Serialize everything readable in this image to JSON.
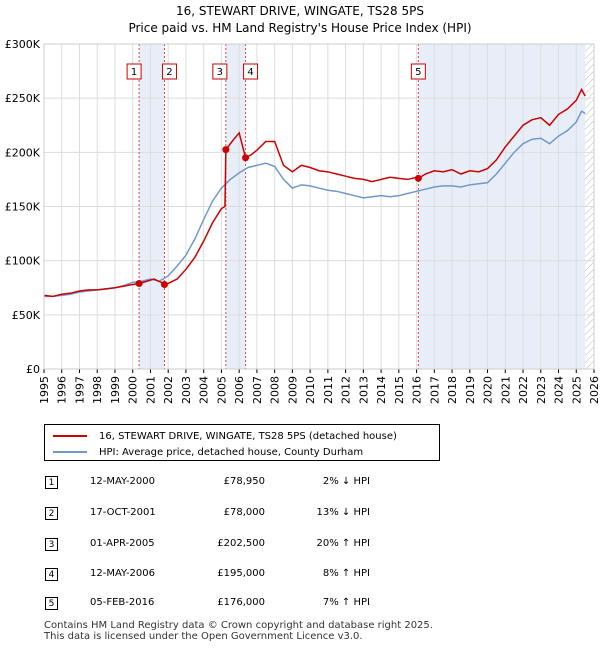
{
  "title_line1": "16, STEWART DRIVE, WINGATE, TS28 5PS",
  "title_line2": "Price paid vs. HM Land Registry's House Price Index (HPI)",
  "chart_data": {
    "type": "line",
    "xlim": [
      1995,
      2026
    ],
    "ylim": [
      0,
      300000
    ],
    "y_ticks": [
      0,
      50000,
      100000,
      150000,
      200000,
      250000,
      300000
    ],
    "y_tick_labels": [
      "£0",
      "£50K",
      "£100K",
      "£150K",
      "£200K",
      "£250K",
      "£300K"
    ],
    "x_ticks": [
      1995,
      1996,
      1997,
      1998,
      1999,
      2000,
      2001,
      2002,
      2003,
      2004,
      2005,
      2006,
      2007,
      2008,
      2009,
      2010,
      2011,
      2012,
      2013,
      2014,
      2015,
      2016,
      2017,
      2018,
      2019,
      2020,
      2021,
      2022,
      2023,
      2024,
      2025,
      2026
    ],
    "x_tick_labels": [
      "1995",
      "1996",
      "1997",
      "1998",
      "1999",
      "2000",
      "2001",
      "2002",
      "2003",
      "2004",
      "2005",
      "2006",
      "2007",
      "2008",
      "2009",
      "2010",
      "2011",
      "2012",
      "2013",
      "2014",
      "2015",
      "2016",
      "2017",
      "2018",
      "2019",
      "2020",
      "2021",
      "2022",
      "2023",
      "2024",
      "2025",
      "2026"
    ],
    "shaded_regions": [
      [
        2000.36,
        2001.79
      ],
      [
        2005.25,
        2006.36
      ],
      [
        2016.1,
        2025.5
      ]
    ],
    "hatched_region": [
      2025.5,
      2026
    ],
    "series": [
      {
        "name": "16, STEWART DRIVE, WINGATE, TS28 5PS (detached house)",
        "color": "#cc0000",
        "x": [
          1995,
          1995.5,
          1996,
          1996.5,
          1997,
          1997.5,
          1998,
          1998.5,
          1999,
          1999.5,
          2000,
          2000.36,
          2000.8,
          2001.2,
          2001.6,
          2001.79,
          2002,
          2002.5,
          2003,
          2003.5,
          2004,
          2004.5,
          2005,
          2005.2,
          2005.25,
          2005.6,
          2006,
          2006.36,
          2006.7,
          2007,
          2007.5,
          2008,
          2008.5,
          2009,
          2009.5,
          2010,
          2010.5,
          2011,
          2011.5,
          2012,
          2012.5,
          2013,
          2013.5,
          2014,
          2014.5,
          2015,
          2015.5,
          2016,
          2016.1,
          2016.5,
          2017,
          2017.5,
          2018,
          2018.5,
          2019,
          2019.5,
          2020,
          2020.5,
          2021,
          2021.5,
          2022,
          2022.5,
          2023,
          2023.5,
          2024,
          2024.5,
          2025,
          2025.3,
          2025.5
        ],
        "values": [
          68000,
          67000,
          69000,
          70000,
          72000,
          73000,
          73000,
          74000,
          75000,
          76500,
          78000,
          78950,
          81000,
          83000,
          80000,
          78000,
          79000,
          83000,
          92000,
          103000,
          118000,
          135000,
          148000,
          150000,
          202500,
          210000,
          218000,
          195000,
          198000,
          202000,
          210000,
          210000,
          188000,
          182000,
          188000,
          186000,
          183000,
          182000,
          180000,
          178000,
          176000,
          175000,
          173000,
          175000,
          177000,
          176000,
          175000,
          177000,
          176000,
          180000,
          183000,
          182000,
          184000,
          180000,
          183000,
          182000,
          185000,
          193000,
          205000,
          215000,
          225000,
          230000,
          232000,
          225000,
          235000,
          240000,
          248000,
          258000,
          252000
        ]
      },
      {
        "name": "HPI: Average price, detached house, County Durham",
        "color": "#6f98cc",
        "x": [
          1995,
          1995.5,
          1996,
          1996.5,
          1997,
          1997.5,
          1998,
          1998.5,
          1999,
          1999.5,
          2000,
          2000.5,
          2001,
          2001.5,
          2002,
          2002.5,
          2003,
          2003.5,
          2004,
          2004.5,
          2005,
          2005.5,
          2006,
          2006.5,
          2007,
          2007.5,
          2008,
          2008.5,
          2009,
          2009.5,
          2010,
          2010.5,
          2011,
          2011.5,
          2012,
          2012.5,
          2013,
          2013.5,
          2014,
          2014.5,
          2015,
          2015.5,
          2016,
          2016.5,
          2017,
          2017.5,
          2018,
          2018.5,
          2019,
          2019.5,
          2020,
          2020.5,
          2021,
          2021.5,
          2022,
          2022.5,
          2023,
          2023.5,
          2024,
          2024.5,
          2025,
          2025.3,
          2025.5
        ],
        "values": [
          67000,
          67000,
          68000,
          69000,
          71000,
          72000,
          73000,
          74000,
          75000,
          77000,
          80000,
          81000,
          83000,
          81000,
          86000,
          95000,
          105000,
          120000,
          138000,
          155000,
          167000,
          175000,
          181000,
          186000,
          188000,
          190000,
          187000,
          175000,
          167000,
          170000,
          169000,
          167000,
          165000,
          164000,
          162000,
          160000,
          158000,
          159000,
          160000,
          159000,
          160000,
          162000,
          164000,
          166000,
          168000,
          169000,
          169000,
          168000,
          170000,
          171000,
          172000,
          180000,
          190000,
          200000,
          208000,
          212000,
          213000,
          208000,
          215000,
          220000,
          228000,
          238000,
          236000
        ]
      }
    ],
    "markers": [
      {
        "label": "1",
        "x": 2000.36,
        "y": 78950
      },
      {
        "label": "2",
        "x": 2001.79,
        "y": 78000
      },
      {
        "label": "3",
        "x": 2005.25,
        "y": 202500
      },
      {
        "label": "4",
        "x": 2006.36,
        "y": 195000
      },
      {
        "label": "5",
        "x": 2016.1,
        "y": 176000
      }
    ]
  },
  "legend": {
    "red_label": "16, STEWART DRIVE, WINGATE, TS28 5PS (detached house)",
    "blue_label": "HPI: Average price, detached house, County Durham"
  },
  "transactions": [
    {
      "num": "1",
      "date": "12-MAY-2000",
      "price": "£78,950",
      "hpi": "2% ↓ HPI"
    },
    {
      "num": "2",
      "date": "17-OCT-2001",
      "price": "£78,000",
      "hpi": "13% ↓ HPI"
    },
    {
      "num": "3",
      "date": "01-APR-2005",
      "price": "£202,500",
      "hpi": "20% ↑ HPI"
    },
    {
      "num": "4",
      "date": "12-MAY-2006",
      "price": "£195,000",
      "hpi": "8% ↑ HPI"
    },
    {
      "num": "5",
      "date": "05-FEB-2016",
      "price": "£176,000",
      "hpi": "7% ↑ HPI"
    }
  ],
  "footer_line1": "Contains HM Land Registry data © Crown copyright and database right 2025.",
  "footer_line2": "This data is licensed under the Open Government Licence v3.0."
}
